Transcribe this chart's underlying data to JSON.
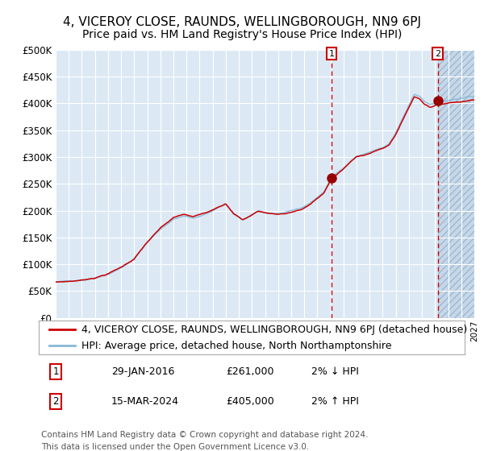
{
  "title_line1": "4, VICEROY CLOSE, RAUNDS, WELLINGBOROUGH, NN9 6PJ",
  "title_line2": "Price paid vs. HM Land Registry's House Price Index (HPI)",
  "ytick_values": [
    0,
    50000,
    100000,
    150000,
    200000,
    250000,
    300000,
    350000,
    400000,
    450000,
    500000
  ],
  "xlim": [
    1995.0,
    2027.0
  ],
  "ylim": [
    0,
    500000
  ],
  "background_color": "#ffffff",
  "plot_bg_color": "#dce9f5",
  "hatch_bg_color": "#c5d8ea",
  "grid_color": "#ffffff",
  "red_line_color": "#cc0000",
  "blue_line_color": "#88b8d8",
  "marker_color": "#990000",
  "marker1_x": 2016.08,
  "marker1_y": 261000,
  "marker2_x": 2024.21,
  "marker2_y": 405000,
  "vline1_x": 2016.08,
  "vline2_x": 2024.21,
  "hatch_start": 2024.21,
  "legend_label1": "4, VICEROY CLOSE, RAUNDS, WELLINGBOROUGH, NN9 6PJ (detached house)",
  "legend_label2": "HPI: Average price, detached house, North Northamptonshire",
  "ann1_label": "1",
  "ann1_date": "29-JAN-2016",
  "ann1_price": "£261,000",
  "ann1_hpi": "2% ↓ HPI",
  "ann2_label": "2",
  "ann2_date": "15-MAR-2024",
  "ann2_price": "£405,000",
  "ann2_hpi": "2% ↑ HPI",
  "footer": "Contains HM Land Registry data © Crown copyright and database right 2024.\nThis data is licensed under the Open Government Licence v3.0.",
  "title_fontsize": 11,
  "subtitle_fontsize": 10,
  "tick_fontsize": 8,
  "legend_fontsize": 9,
  "ann_fontsize": 9,
  "footer_fontsize": 7.5
}
